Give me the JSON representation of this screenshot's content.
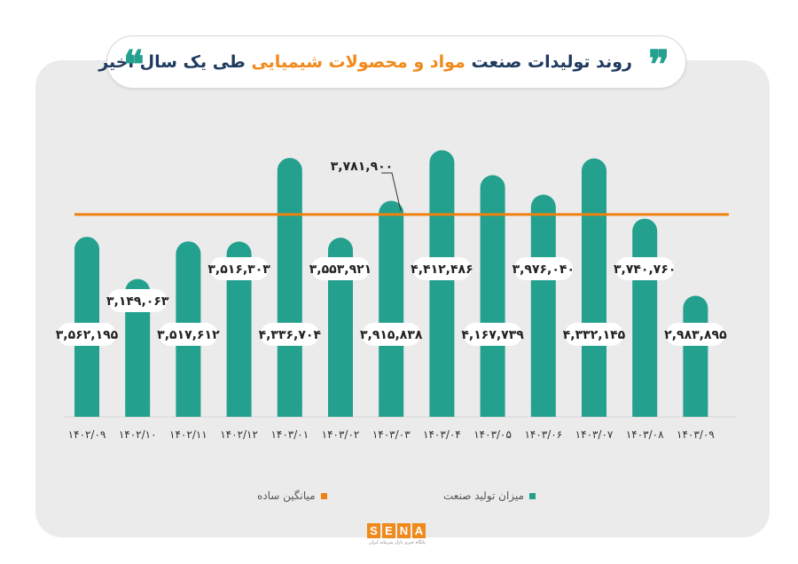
{
  "header": {
    "title_part1": "روند تولیدات صنعت",
    "title_part2": "مواد و محصولات شیمیایی",
    "title_part3": "طی یک سال اخیر",
    "quote_open": "❞",
    "quote_close": "❝"
  },
  "chart_data": {
    "type": "bar",
    "categories": [
      "۱۴۰۲/۰۹",
      "۱۴۰۲/۱۰",
      "۱۴۰۲/۱۱",
      "۱۴۰۲/۱۲",
      "۱۴۰۳/۰۱",
      "۱۴۰۳/۰۲",
      "۱۴۰۳/۰۳",
      "۱۴۰۳/۰۴",
      "۱۴۰۳/۰۵",
      "۱۴۰۳/۰۶",
      "۱۴۰۳/۰۷",
      "۱۴۰۳/۰۸",
      "۱۴۰۳/۰۹"
    ],
    "series": [
      {
        "name": "میزان تولید صنعت",
        "values": [
          3562195,
          3149063,
          3517612,
          3516303,
          4336704,
          3553921,
          3915838,
          4412486,
          4167739,
          3976040,
          4332145,
          3740760,
          2983895
        ],
        "labels": [
          "۳,۵۶۲,۱۹۵",
          "۳,۱۴۹,۰۶۳",
          "۳,۵۱۷,۶۱۲",
          "۳,۵۱۶,۳۰۳",
          "۴,۳۳۶,۷۰۴",
          "۳,۵۵۳,۹۲۱",
          "۳,۹۱۵,۸۳۸",
          "۴,۴۱۲,۴۸۶",
          "۴,۱۶۷,۷۳۹",
          "۳,۹۷۶,۰۴۰",
          "۴,۳۳۲,۱۴۵",
          "۳,۷۴۰,۷۶۰",
          "۲,۹۸۳,۸۹۵"
        ],
        "color": "#23a08e"
      }
    ],
    "average": {
      "name": "میانگین ساده",
      "value": 3781900,
      "label": "۳,۷۸۱,۹۰۰",
      "color": "#f0810f"
    },
    "label_positions": [
      "mid",
      "above",
      "mid",
      "above",
      "mid",
      "above",
      "mid",
      "above",
      "mid",
      "above",
      "mid",
      "above",
      "mid"
    ],
    "colors": {
      "bar": "#23a08e",
      "average": "#f0810f"
    }
  },
  "legend": {
    "production": "میزان تولید صنعت",
    "average": "میانگین ساده"
  },
  "logo": {
    "letters": [
      "S",
      "E",
      "N",
      "A"
    ],
    "tagline": "پایگاه خبری بازار سرمایه ایران"
  }
}
